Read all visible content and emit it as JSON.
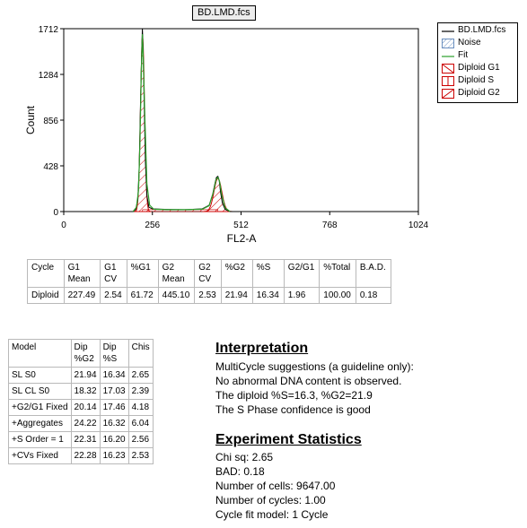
{
  "window": {
    "file_title": "BD.LMD.fcs"
  },
  "legend": {
    "items": [
      {
        "label": "BD.LMD.fcs",
        "icon": "black-line"
      },
      {
        "label": "Noise",
        "icon": "hatch-box-blue"
      },
      {
        "label": "Fit",
        "icon": "green-line"
      },
      {
        "label": "Diploid G1",
        "icon": "hatch-box-red"
      },
      {
        "label": "Diploid S",
        "icon": "hatch-box-red"
      },
      {
        "label": "Diploid G2",
        "icon": "hatch-box-red"
      }
    ]
  },
  "chart_data": {
    "type": "line",
    "title": "",
    "xlabel": "FL2-A",
    "ylabel": "Count",
    "xlim": [
      0,
      1024
    ],
    "ylim": [
      0,
      1712
    ],
    "x_ticks": [
      0,
      256,
      512,
      768,
      1024
    ],
    "y_ticks": [
      0,
      428,
      856,
      1284,
      1712
    ],
    "series": [
      {
        "name": "BD.LMD.fcs",
        "color": "#000000",
        "x": [
          0,
          200,
          208,
          214,
          218,
          222,
          225,
          227,
          229,
          232,
          236,
          240,
          246,
          256,
          300,
          350,
          400,
          420,
          430,
          437,
          441,
          445,
          449,
          453,
          458,
          466,
          480,
          512
        ],
        "y": [
          0,
          0,
          20,
          110,
          420,
          1050,
          1490,
          1712,
          1560,
          1050,
          460,
          150,
          40,
          25,
          20,
          18,
          25,
          60,
          160,
          270,
          320,
          330,
          290,
          180,
          80,
          20,
          0,
          0
        ]
      },
      {
        "name": "Fit",
        "color": "#2ca02c",
        "x": [
          200,
          210,
          216,
          220,
          224,
          227,
          230,
          234,
          240,
          248,
          260,
          300,
          350,
          400,
          420,
          432,
          440,
          445,
          450,
          456,
          466,
          480
        ],
        "y": [
          0,
          40,
          200,
          640,
          1300,
          1660,
          1400,
          900,
          260,
          60,
          22,
          18,
          18,
          22,
          55,
          180,
          300,
          320,
          280,
          160,
          35,
          0
        ]
      }
    ],
    "fit_components": {
      "g1": {
        "mean": 227.49,
        "peak": 1640
      },
      "s_phase_level": 18,
      "g2": {
        "mean": 445.1,
        "peak": 310
      }
    }
  },
  "summary_table": {
    "headers": [
      "Cycle",
      "G1\nMean",
      "G1\nCV",
      "%G1",
      "G2\nMean",
      "G2\nCV",
      "%G2",
      "%S",
      "G2/G1",
      "%Total",
      "B.A.D."
    ],
    "rows": [
      [
        "Diploid",
        "227.49",
        "2.54",
        "61.72",
        "445.10",
        "2.53",
        "21.94",
        "16.34",
        "1.96",
        "100.00",
        "0.18"
      ]
    ]
  },
  "models_table": {
    "headers": [
      "Model",
      "Dip\n%G2",
      "Dip\n%S",
      "Chis"
    ],
    "rows": [
      [
        "SL S0",
        "21.94",
        "16.34",
        "2.65"
      ],
      [
        "SL CL S0",
        "18.32",
        "17.03",
        "2.39"
      ],
      [
        "+G2/G1 Fixed",
        "20.14",
        "17.46",
        "4.18"
      ],
      [
        "+Aggregates",
        "24.22",
        "16.32",
        "6.04"
      ],
      [
        "+S Order = 1",
        "22.31",
        "16.20",
        "2.56"
      ],
      [
        "+CVs Fixed",
        "22.28",
        "16.23",
        "2.53"
      ]
    ]
  },
  "interpretation": {
    "title": "Interpretation",
    "lines": [
      "MultiCycle suggestions (a guideline only):",
      "No abnormal DNA content is observed.",
      "The diploid %S=16.3, %G2=21.9",
      "The S Phase confidence is good"
    ]
  },
  "experiment_statistics": {
    "title": "Experiment Statistics",
    "lines": [
      "Chi sq: 2.65",
      "BAD: 0.18",
      "Number of cells: 9647.00",
      "Number of cycles: 1.00",
      "Cycle fit model: 1 Cycle"
    ]
  }
}
